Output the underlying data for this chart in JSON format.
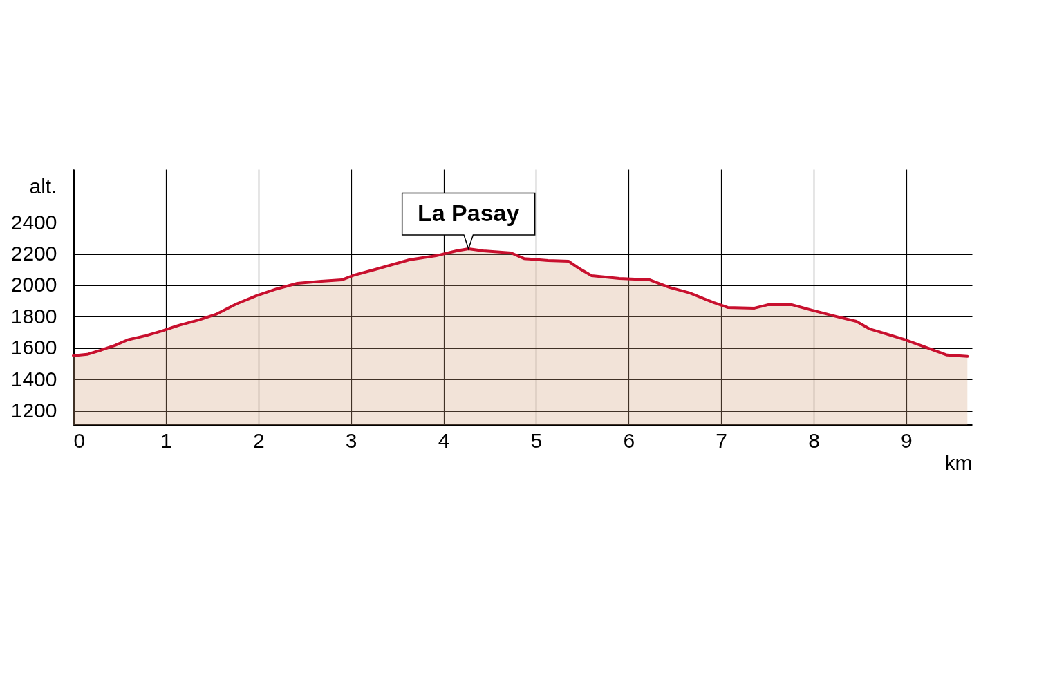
{
  "chart_data": {
    "type": "area",
    "xlabel": "km",
    "ylabel": "alt.",
    "x": [
      0,
      0.15,
      0.3,
      0.45,
      0.59,
      0.78,
      0.96,
      1.14,
      1.36,
      1.54,
      1.76,
      1.98,
      2.2,
      2.42,
      2.68,
      2.9,
      3.04,
      3.26,
      3.63,
      3.92,
      4.14,
      4.27,
      4.43,
      4.73,
      4.87,
      5.13,
      5.35,
      5.46,
      5.6,
      5.9,
      6.23,
      6.44,
      6.66,
      6.92,
      7.07,
      7.36,
      7.51,
      7.76,
      7.98,
      8.24,
      8.46,
      8.6,
      8.97,
      9.19,
      9.44,
      9.66
    ],
    "series": [
      {
        "color": "#c8102e",
        "values": [
          1552,
          1560,
          1587,
          1617,
          1653,
          1679,
          1710,
          1745,
          1780,
          1815,
          1881,
          1934,
          1978,
          2013,
          2026,
          2035,
          2066,
          2101,
          2163,
          2189,
          2220,
          2233,
          2220,
          2207,
          2171,
          2158,
          2154,
          2110,
          2062,
          2044,
          2035,
          1987,
          1952,
          1890,
          1859,
          1855,
          1877,
          1877,
          1842,
          1802,
          1771,
          1723,
          1657,
          1609,
          1556,
          1547
        ]
      }
    ],
    "xlim": [
      0,
      9.71
    ],
    "ylim": [
      1110,
      2740
    ],
    "xticks": [
      0,
      1,
      2,
      3,
      4,
      5,
      6,
      7,
      8,
      9
    ],
    "yticks": [
      1200,
      1400,
      1600,
      1800,
      2000,
      2200,
      2400
    ],
    "grid": true,
    "annotations": [
      {
        "text": "La Pasay",
        "x": 4.27,
        "y": 2233
      }
    ]
  }
}
